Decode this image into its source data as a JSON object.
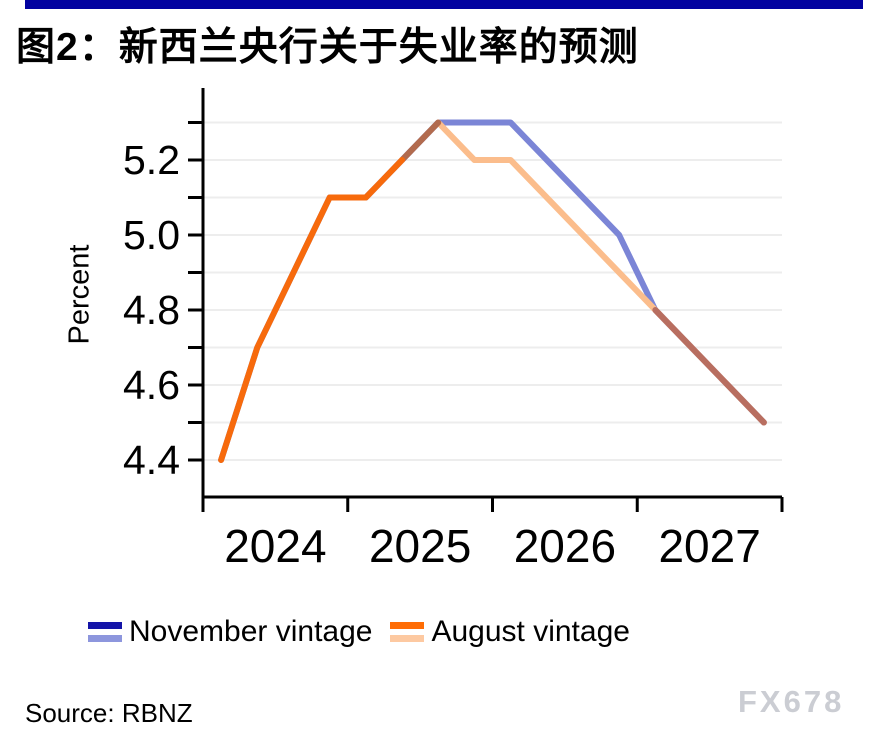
{
  "header": {
    "title": "图2：新西兰央行关于失业率的预测",
    "accent_bar_color": "#0202a0"
  },
  "chart_data": {
    "type": "line",
    "ylabel": "Percent",
    "frequency": "quarterly",
    "quarters": [
      "2024Q1",
      "2024Q2",
      "2024Q3",
      "2024Q4",
      "2025Q1",
      "2025Q2",
      "2025Q3",
      "2025Q4",
      "2026Q1",
      "2026Q2",
      "2026Q3",
      "2026Q4",
      "2027Q1",
      "2027Q2",
      "2027Q3",
      "2027Q4"
    ],
    "year_labels": [
      "2024",
      "2025",
      "2026",
      "2027"
    ],
    "ylim": [
      4.3,
      5.39
    ],
    "y_ticks_labeled": [
      5.2,
      5.0,
      4.8,
      4.6,
      4.4
    ],
    "y_minor_tick_step": 0.1,
    "grid": true,
    "legend_position": "bottom",
    "actual_through": "2025Q2",
    "series": [
      {
        "name": "November vintage",
        "values": [
          4.4,
          4.7,
          4.9,
          5.1,
          5.1,
          5.2,
          5.3,
          5.3,
          5.3,
          5.2,
          5.1,
          5.0,
          4.8,
          4.7,
          4.6,
          4.5
        ],
        "line_color": "#7b85d6",
        "legend_colors": [
          "#1414a8",
          "#8d96dd"
        ]
      },
      {
        "name": "August vintage",
        "values": [
          4.4,
          4.7,
          4.9,
          5.1,
          5.1,
          5.2,
          5.3,
          5.2,
          5.2,
          5.1,
          5.0,
          4.9,
          4.8,
          4.7,
          4.6,
          4.5
        ],
        "line_color": "#fbbd8c",
        "legend_colors": [
          "#ff6d05",
          "#fdc9a1"
        ]
      }
    ],
    "actual_line_color": "#f76a0c",
    "overlap_rise_color": "#b26b4e",
    "overlap_tail_color": "#b86e60",
    "gridline_color": "#ededed",
    "axis_color": "#000000"
  },
  "footer": {
    "source": "Source: RBNZ",
    "watermark": "FX678"
  }
}
